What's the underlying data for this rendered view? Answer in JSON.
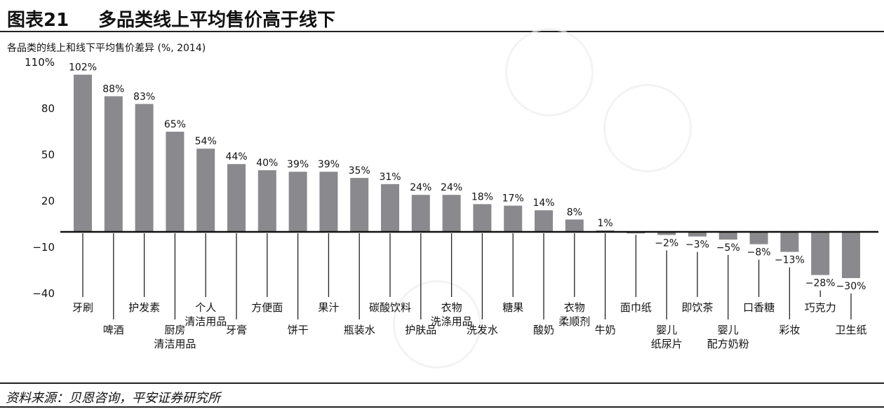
{
  "header": {
    "figure_number": "图表21",
    "title": "多品类线上平均售价高于线下"
  },
  "source": "资料来源：贝恩咨询，平安证券研究所",
  "chart_data": {
    "type": "bar",
    "title": "各品类的线上和线下平均售价差异 (%, 2014)",
    "xlabel": "",
    "ylabel": "",
    "ylim": [
      -40,
      110
    ],
    "yticks": [
      110,
      80,
      50,
      20,
      -10,
      -40
    ],
    "ytick_labels": [
      "110%",
      "80",
      "50",
      "20",
      "−10",
      "−40"
    ],
    "bar_color": "#8a8a8e",
    "categories": [
      "牙刷",
      "啤酒",
      "护发素",
      "厨房\n清洁用品",
      "个人\n清洁用品",
      "牙膏",
      "方便面",
      "饼干",
      "果汁",
      "瓶装水",
      "碳酸饮料",
      "护肤品",
      "衣物\n洗涤用品",
      "洗发水",
      "糖果",
      "酸奶",
      "衣物\n柔顺剂",
      "牛奶",
      "面巾纸",
      "婴儿\n纸尿片",
      "即饮茶",
      "婴儿\n配方奶粉",
      "口香糖",
      "彩妆",
      "巧克力",
      "卫生纸"
    ],
    "values": [
      102,
      88,
      83,
      65,
      54,
      44,
      40,
      39,
      39,
      35,
      31,
      24,
      24,
      18,
      17,
      14,
      8,
      1,
      -1,
      -2,
      -3,
      -5,
      -8,
      -13,
      -28,
      -30
    ],
    "value_labels": [
      "102%",
      "88%",
      "83%",
      "65%",
      "54%",
      "44%",
      "40%",
      "39%",
      "39%",
      "35%",
      "31%",
      "24%",
      "24%",
      "18%",
      "17%",
      "14%",
      "8%",
      "1%",
      "",
      "−2%",
      "−3%",
      "−5%",
      "−8%",
      "−13%",
      "−28%",
      "−30%"
    ]
  }
}
